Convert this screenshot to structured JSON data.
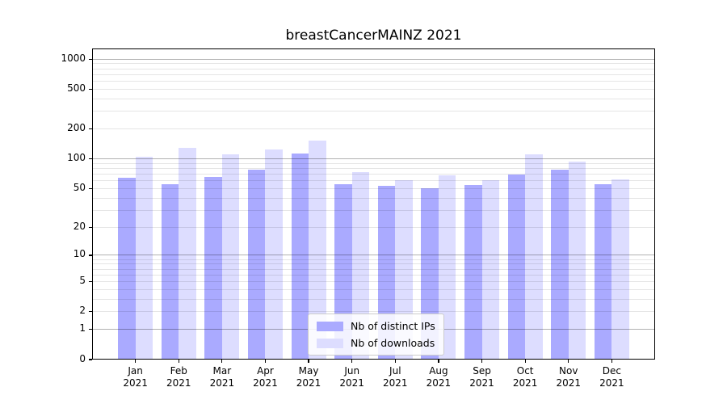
{
  "figure": {
    "background": "#ffffff",
    "axis_color": "#000000"
  },
  "chart_data": {
    "type": "bar",
    "title": "breastCancerMAINZ 2021",
    "categories": [
      "Jan",
      "Feb",
      "Mar",
      "Apr",
      "May",
      "Jun",
      "Jul",
      "Aug",
      "Sep",
      "Oct",
      "Nov",
      "Dec"
    ],
    "category_year": "2021",
    "series": [
      {
        "name": "Nb of distinct IPs",
        "color": "#aaaaff",
        "values": [
          65,
          55,
          66,
          78,
          113,
          55,
          53,
          50,
          54,
          70,
          78,
          55
        ]
      },
      {
        "name": "Nb of downloads",
        "color": "#ddddff",
        "values": [
          105,
          130,
          112,
          125,
          152,
          74,
          61,
          68,
          61,
          112,
          94,
          62
        ]
      }
    ],
    "y_scale": "log10(1+y)",
    "y_ticks": [
      0,
      1,
      2,
      5,
      10,
      20,
      50,
      100,
      200,
      500,
      1000
    ],
    "ylim": [
      0,
      1280
    ],
    "grid": {
      "major_at": [
        1,
        10,
        100,
        1000
      ],
      "major_color": "rgba(0,0,0,0.30)",
      "minor_color": "rgba(0,0,0,0.10)",
      "drawn_over_bars": true
    },
    "legend": {
      "entries": [
        "Nb of distinct IPs",
        "Nb of downloads"
      ],
      "position": "inside lower-center"
    }
  }
}
